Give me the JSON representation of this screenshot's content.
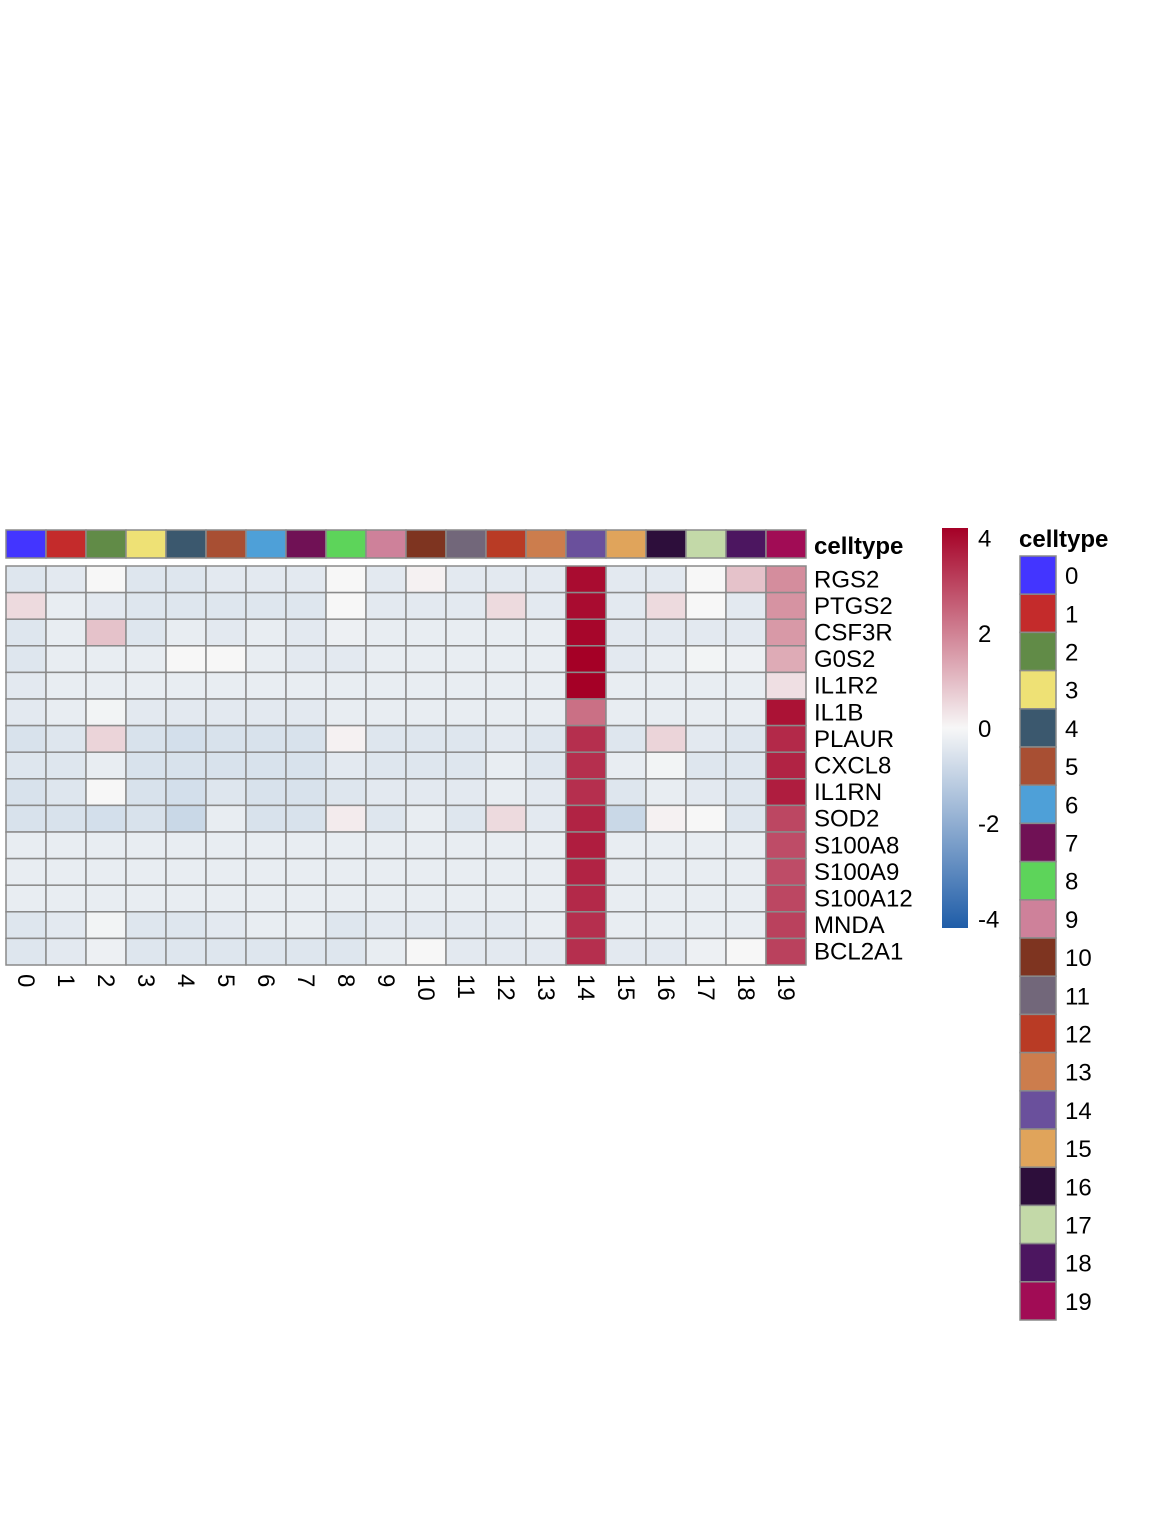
{
  "chart_data": {
    "type": "heatmap",
    "columns": [
      "0",
      "1",
      "2",
      "3",
      "4",
      "5",
      "6",
      "7",
      "8",
      "9",
      "10",
      "11",
      "12",
      "13",
      "14",
      "15",
      "16",
      "17",
      "18",
      "19"
    ],
    "rows": [
      "RGS2",
      "PTGS2",
      "CSF3R",
      "G0S2",
      "IL1R2",
      "IL1B",
      "PLAUR",
      "CXCL8",
      "IL1RN",
      "SOD2",
      "S100A8",
      "S100A9",
      "S100A12",
      "MNDA",
      "BCL2A1"
    ],
    "values": [
      [
        -0.5,
        -0.4,
        0.0,
        -0.5,
        -0.5,
        -0.4,
        -0.4,
        -0.4,
        0.0,
        -0.4,
        0.1,
        -0.4,
        -0.4,
        -0.4,
        4.0,
        -0.4,
        -0.4,
        0.0,
        0.9,
        1.8
      ],
      [
        0.5,
        -0.3,
        -0.4,
        -0.5,
        -0.5,
        -0.5,
        -0.5,
        -0.5,
        0.0,
        -0.4,
        -0.4,
        -0.4,
        0.5,
        -0.4,
        4.0,
        -0.4,
        0.5,
        0.0,
        -0.4,
        1.7
      ],
      [
        -0.5,
        -0.3,
        0.9,
        -0.5,
        -0.3,
        -0.4,
        -0.3,
        -0.4,
        -0.2,
        -0.3,
        -0.3,
        -0.3,
        -0.3,
        -0.3,
        4.1,
        -0.4,
        -0.4,
        -0.4,
        -0.4,
        1.6
      ],
      [
        -0.5,
        -0.3,
        -0.3,
        -0.3,
        0.0,
        0.0,
        -0.3,
        -0.4,
        -0.4,
        -0.3,
        -0.3,
        -0.3,
        -0.3,
        -0.3,
        4.2,
        -0.4,
        -0.3,
        -0.1,
        -0.2,
        1.3
      ],
      [
        -0.4,
        -0.3,
        -0.3,
        -0.3,
        -0.3,
        -0.3,
        -0.3,
        -0.3,
        -0.3,
        -0.3,
        -0.3,
        -0.3,
        -0.3,
        -0.3,
        4.3,
        -0.3,
        -0.3,
        -0.3,
        -0.3,
        0.4
      ],
      [
        -0.4,
        -0.3,
        -0.1,
        -0.4,
        -0.4,
        -0.4,
        -0.4,
        -0.4,
        -0.3,
        -0.3,
        -0.3,
        -0.3,
        -0.3,
        -0.3,
        2.3,
        -0.3,
        -0.3,
        -0.3,
        -0.3,
        3.9
      ],
      [
        -0.6,
        -0.5,
        0.6,
        -0.6,
        -0.7,
        -0.6,
        -0.6,
        -0.6,
        0.1,
        -0.5,
        -0.5,
        -0.5,
        -0.4,
        -0.5,
        3.4,
        -0.5,
        0.6,
        -0.4,
        -0.5,
        3.5
      ],
      [
        -0.5,
        -0.5,
        -0.3,
        -0.6,
        -0.6,
        -0.6,
        -0.6,
        -0.6,
        -0.4,
        -0.5,
        -0.5,
        -0.5,
        -0.3,
        -0.5,
        3.4,
        -0.3,
        -0.1,
        -0.5,
        -0.5,
        3.6
      ],
      [
        -0.6,
        -0.5,
        0.0,
        -0.6,
        -0.7,
        -0.5,
        -0.6,
        -0.6,
        -0.5,
        -0.4,
        -0.4,
        -0.4,
        -0.3,
        -0.4,
        3.4,
        -0.5,
        -0.3,
        -0.4,
        -0.5,
        3.7
      ],
      [
        -0.6,
        -0.6,
        -0.7,
        -0.6,
        -0.9,
        -0.3,
        -0.6,
        -0.6,
        0.2,
        -0.5,
        -0.3,
        -0.5,
        0.5,
        -0.4,
        3.6,
        -0.9,
        0.1,
        0.0,
        -0.5,
        3.0
      ],
      [
        -0.3,
        -0.3,
        -0.3,
        -0.3,
        -0.3,
        -0.3,
        -0.3,
        -0.3,
        -0.3,
        -0.3,
        -0.3,
        -0.3,
        -0.3,
        -0.3,
        3.7,
        -0.3,
        -0.3,
        -0.3,
        -0.3,
        2.9
      ],
      [
        -0.3,
        -0.3,
        -0.3,
        -0.3,
        -0.3,
        -0.3,
        -0.3,
        -0.3,
        -0.3,
        -0.3,
        -0.3,
        -0.3,
        -0.3,
        -0.3,
        3.6,
        -0.3,
        -0.3,
        -0.3,
        -0.3,
        2.9
      ],
      [
        -0.3,
        -0.3,
        -0.3,
        -0.3,
        -0.3,
        -0.3,
        -0.3,
        -0.3,
        -0.3,
        -0.3,
        -0.3,
        -0.3,
        -0.3,
        -0.3,
        3.5,
        -0.3,
        -0.3,
        -0.3,
        -0.3,
        3.0
      ],
      [
        -0.5,
        -0.4,
        -0.1,
        -0.5,
        -0.5,
        -0.4,
        -0.3,
        -0.3,
        -0.5,
        -0.4,
        -0.4,
        -0.4,
        -0.4,
        -0.3,
        3.4,
        -0.3,
        -0.3,
        -0.3,
        -0.3,
        3.1
      ],
      [
        -0.5,
        -0.4,
        -0.2,
        -0.5,
        -0.5,
        -0.5,
        -0.5,
        -0.5,
        -0.5,
        -0.3,
        0.0,
        -0.4,
        -0.4,
        -0.4,
        3.4,
        -0.4,
        -0.4,
        -0.2,
        0.0,
        3.1
      ]
    ],
    "annotation": {
      "title": "celltype",
      "colors": [
        "#4335FF",
        "#C42B2B",
        "#618B47",
        "#EEE175",
        "#3B586E",
        "#A84F33",
        "#4EA0D8",
        "#701155",
        "#5DD45A",
        "#CE819A",
        "#7E3420",
        "#72677A",
        "#B93B25",
        "#CC7D4D",
        "#6A509C",
        "#E0A45B",
        "#2D0E3B",
        "#C3D9A8",
        "#4C1660",
        "#A10C55"
      ]
    },
    "colorbar": {
      "ticks": [
        "4",
        "2",
        "0",
        "-2",
        "-4"
      ],
      "range": [
        -4.2,
        4.2
      ],
      "low_color": "#2166AC",
      "mid_color": "#F7F7F7",
      "high_color": "#A50026"
    },
    "legend": {
      "title": "celltype",
      "position": "right"
    }
  }
}
